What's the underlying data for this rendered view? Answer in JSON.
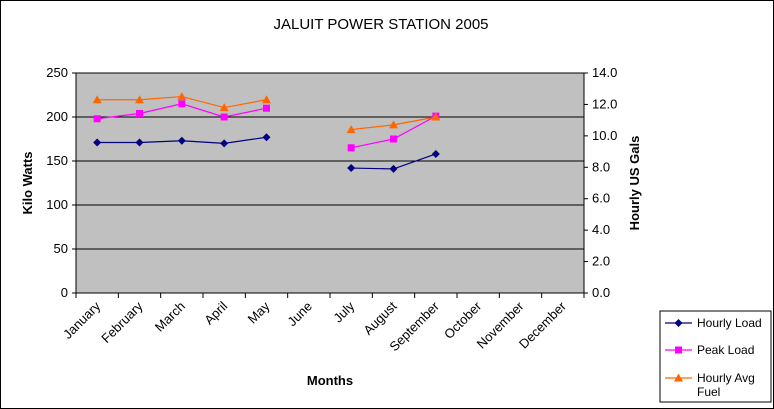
{
  "chart_data": {
    "type": "line",
    "title": "JALUIT POWER STATION 2005",
    "xlabel": "Months",
    "ylabel": "Kilo Watts",
    "y2label": "Hourly US Gals",
    "ylim": [
      0,
      250
    ],
    "y2lim": [
      0,
      14
    ],
    "yticks": [
      "0",
      "50",
      "100",
      "150",
      "200",
      "250"
    ],
    "y2ticks": [
      "0.0",
      "2.0",
      "4.0",
      "6.0",
      "8.0",
      "10.0",
      "12.0",
      "14.0"
    ],
    "categories": [
      "January",
      "February",
      "March",
      "April",
      "May",
      "June",
      "July",
      "August",
      "September",
      "October",
      "November",
      "December"
    ],
    "grid": "horizontal major gridlines",
    "legend_position": "bottom-right",
    "plot_background": "#c0c0c0",
    "series": [
      {
        "name": "Hourly Load",
        "axis": "left",
        "color": "#000080",
        "marker": "diamond",
        "values": [
          171,
          171,
          173,
          170,
          177,
          null,
          142,
          141,
          158,
          null,
          null,
          null
        ]
      },
      {
        "name": "Peak Load",
        "axis": "left",
        "color": "#ff00ff",
        "marker": "square",
        "values": [
          198,
          204,
          215,
          200,
          210,
          null,
          165,
          175,
          201,
          null,
          null,
          null
        ]
      },
      {
        "name": "Hourly Avg Fuel",
        "axis": "right",
        "color": "#ff6600",
        "marker": "triangle",
        "values": [
          12.3,
          12.3,
          12.5,
          11.8,
          12.3,
          null,
          10.4,
          10.7,
          11.2,
          null,
          null,
          null
        ]
      }
    ]
  }
}
